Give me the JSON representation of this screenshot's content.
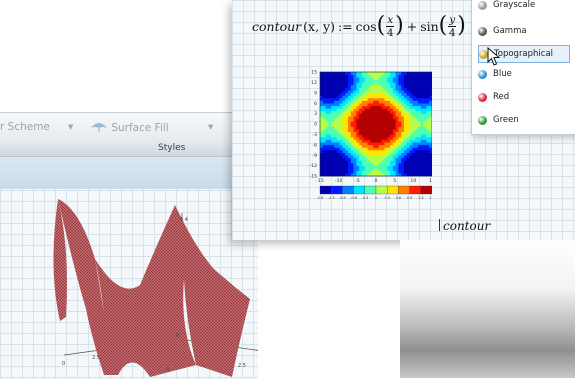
{
  "back_window": {
    "ribbon": {
      "color_scheme_label": "r Scheme",
      "surface_fill_label": "Surface Fill",
      "styles_label": "Styles"
    },
    "axis_labels": [
      "9.4",
      "0",
      "2.5",
      "2.5",
      "0",
      "0"
    ],
    "surface_color": "#b5474d"
  },
  "front_window": {
    "formula": {
      "func_name": "contour",
      "args": "(x, y)",
      "define_op": ":=",
      "cos": "cos",
      "plus": "+",
      "sin": "sin",
      "x_num": "x",
      "x_den": "4",
      "y_num": "y",
      "y_den": "4"
    },
    "caption": "contour"
  },
  "scheme_menu": {
    "items": [
      {
        "label": "Grayscale",
        "color": "#9a9a9a"
      },
      {
        "label": "Gamma",
        "color": "#555555"
      },
      {
        "label": "Topographical",
        "color": "#c9a826"
      },
      {
        "label": "Blue",
        "color": "#2a8fd8"
      },
      {
        "label": "Red",
        "color": "#e0213a"
      },
      {
        "label": "Green",
        "color": "#2c9a3a"
      }
    ],
    "hover_index": 2
  },
  "chart_data": {
    "type": "heatmap",
    "function": "cos(x/4) + sin(y/4)",
    "x_ticks": [
      "-15",
      "-10",
      "-5",
      "0",
      "5",
      "10",
      "15"
    ],
    "y_ticks": [
      "-15",
      "-12",
      "-9",
      "-6",
      "-3",
      "0",
      "3",
      "6",
      "9",
      "12",
      "15"
    ],
    "xlim": [
      -15,
      15
    ],
    "ylim": [
      -15,
      15
    ],
    "colorbar_labels": [
      "-1.6",
      "-1.3",
      "-0.9",
      "-0.6",
      "-0.3",
      "0",
      "0.3",
      "0.6",
      "0.9",
      "1.3",
      "1.6"
    ],
    "colorbar_range": [
      -1.6,
      1.6
    ],
    "colormap": "jet",
    "grid": false
  }
}
